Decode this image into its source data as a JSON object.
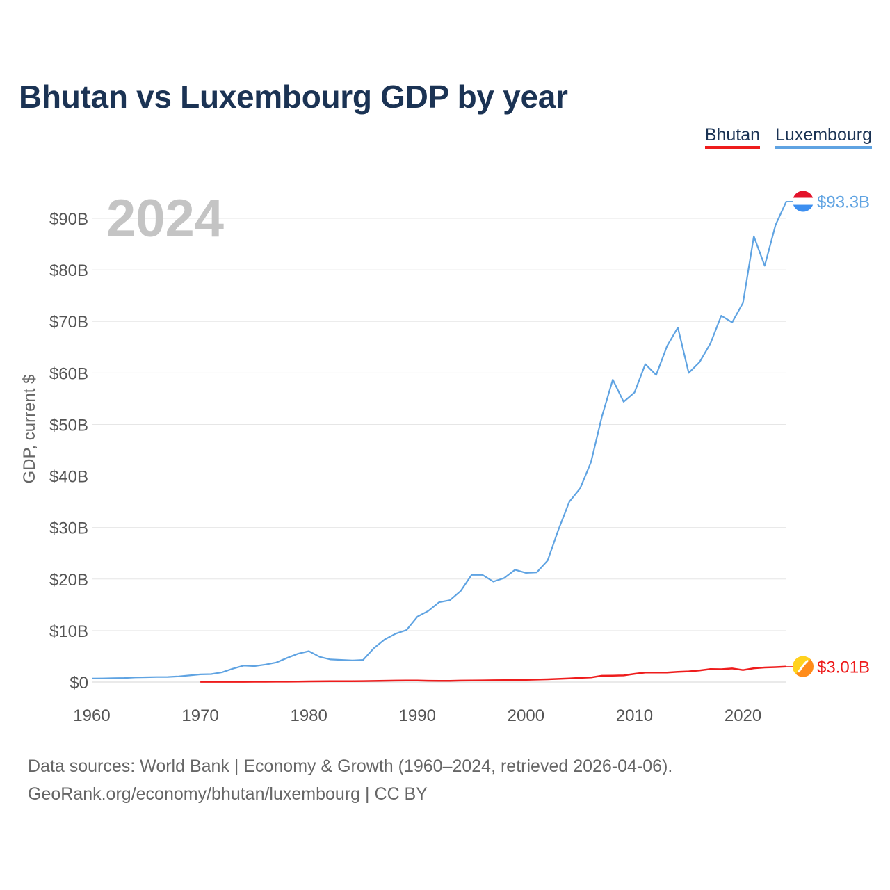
{
  "chart_data": {
    "type": "line",
    "title": "Bhutan vs Luxembourg GDP by year",
    "ylabel": "GDP, current $",
    "xlabel": "",
    "year_label": "2024",
    "xlim": [
      1960,
      2024
    ],
    "ylim": [
      0,
      90
    ],
    "y_unit": "billion current US$",
    "x_ticks": [
      1960,
      1970,
      1980,
      1990,
      2000,
      2010,
      2020
    ],
    "y_ticks": [
      0,
      10,
      20,
      30,
      40,
      50,
      60,
      70,
      80,
      90
    ],
    "y_tick_labels": [
      "$0",
      "$10B",
      "$20B",
      "$30B",
      "$40B",
      "$50B",
      "$60B",
      "$70B",
      "$80B",
      "$90B"
    ],
    "x_tick_labels": [
      "1960",
      "1970",
      "1980",
      "1990",
      "2000",
      "2010",
      "2020"
    ],
    "legend_position": "top-right",
    "series": [
      {
        "name": "Bhutan",
        "color": "#ee1c1c",
        "end_label": "$3.01B",
        "flag_icon": "bhutan-flag-icon",
        "x": [
          1970,
          1971,
          1972,
          1973,
          1974,
          1975,
          1976,
          1977,
          1978,
          1979,
          1980,
          1981,
          1982,
          1983,
          1984,
          1985,
          1986,
          1987,
          1988,
          1989,
          1990,
          1991,
          1992,
          1993,
          1994,
          1995,
          1996,
          1997,
          1998,
          1999,
          2000,
          2001,
          2002,
          2003,
          2004,
          2005,
          2006,
          2007,
          2008,
          2009,
          2010,
          2011,
          2012,
          2013,
          2014,
          2015,
          2016,
          2017,
          2018,
          2019,
          2020,
          2021,
          2022,
          2023,
          2024
        ],
        "values": [
          0.05,
          0.05,
          0.05,
          0.06,
          0.06,
          0.07,
          0.07,
          0.08,
          0.08,
          0.09,
          0.14,
          0.15,
          0.16,
          0.17,
          0.18,
          0.19,
          0.22,
          0.26,
          0.29,
          0.3,
          0.3,
          0.25,
          0.24,
          0.24,
          0.28,
          0.3,
          0.32,
          0.35,
          0.38,
          0.42,
          0.45,
          0.48,
          0.54,
          0.62,
          0.7,
          0.82,
          0.9,
          1.23,
          1.26,
          1.29,
          1.61,
          1.86,
          1.85,
          1.85,
          1.99,
          2.08,
          2.26,
          2.53,
          2.5,
          2.65,
          2.33,
          2.68,
          2.83,
          2.9,
          3.01
        ]
      },
      {
        "name": "Luxembourg",
        "color": "#5fa3e2",
        "end_label": "$93.3B",
        "flag_icon": "luxembourg-flag-icon",
        "x": [
          1960,
          1961,
          1962,
          1963,
          1964,
          1965,
          1966,
          1967,
          1968,
          1969,
          1970,
          1971,
          1972,
          1973,
          1974,
          1975,
          1976,
          1977,
          1978,
          1979,
          1980,
          1981,
          1982,
          1983,
          1984,
          1985,
          1986,
          1987,
          1988,
          1989,
          1990,
          1991,
          1992,
          1993,
          1994,
          1995,
          1996,
          1997,
          1998,
          1999,
          2000,
          2001,
          2002,
          2003,
          2004,
          2005,
          2006,
          2007,
          2008,
          2009,
          2010,
          2011,
          2012,
          2013,
          2014,
          2015,
          2016,
          2017,
          2018,
          2019,
          2020,
          2021,
          2022,
          2023,
          2024
        ],
        "values": [
          0.7,
          0.71,
          0.76,
          0.8,
          0.9,
          0.95,
          0.98,
          1.0,
          1.1,
          1.3,
          1.5,
          1.55,
          1.9,
          2.6,
          3.2,
          3.1,
          3.4,
          3.8,
          4.7,
          5.5,
          6.0,
          4.9,
          4.4,
          4.3,
          4.2,
          4.3,
          6.6,
          8.3,
          9.4,
          10.1,
          12.7,
          13.8,
          15.5,
          15.9,
          17.7,
          20.8,
          20.8,
          19.5,
          20.2,
          21.8,
          21.2,
          21.3,
          23.6,
          29.6,
          35.0,
          37.6,
          42.7,
          51.5,
          58.7,
          54.4,
          56.2,
          61.7,
          59.6,
          65.2,
          68.8,
          60.0,
          62.1,
          65.7,
          71.1,
          69.8,
          73.6,
          86.5,
          80.8,
          88.7,
          93.3
        ]
      }
    ]
  },
  "legend": {
    "items": [
      "Bhutan",
      "Luxembourg"
    ]
  },
  "footer": {
    "sources": "Data sources: World Bank | Economy & Growth (1960–2024, retrieved 2026-04-06).",
    "credit": "GeoRank.org/economy/bhutan/luxembourg | CC BY"
  }
}
